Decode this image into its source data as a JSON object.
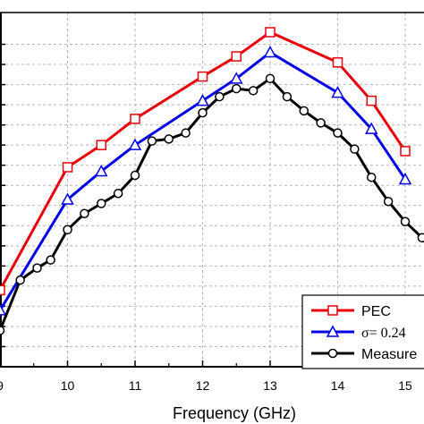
{
  "chart_data": {
    "type": "line",
    "xlabel": "Frequency (GHz)",
    "ylabel": "",
    "xlim": [
      9,
      15.4
    ],
    "ylim": [
      0,
      16
    ],
    "x_ticks": [
      "9",
      "10",
      "11",
      "12",
      "13",
      "14",
      "15"
    ],
    "grid": true,
    "legend_position": "bottom-right",
    "series": [
      {
        "name": "PEC",
        "color": "#e8000b",
        "marker": "square",
        "x": [
          9,
          10,
          10.5,
          11,
          12,
          12.5,
          13,
          14,
          14.5,
          15
        ],
        "y": [
          3.8,
          9.9,
          11.0,
          12.3,
          14.4,
          15.4,
          16.6,
          15.1,
          13.2,
          10.7
        ]
      },
      {
        "name": "σ= 0.24 ",
        "color": "#0000e6",
        "marker": "triangle",
        "x": [
          9,
          10,
          10.5,
          11,
          12,
          12.5,
          13,
          14,
          14.5,
          15
        ],
        "y": [
          2.8,
          8.3,
          9.7,
          11.0,
          13.2,
          14.3,
          15.6,
          13.6,
          11.8,
          9.3
        ]
      },
      {
        "name": "Measure",
        "color": "#000000",
        "marker": "circle",
        "x": [
          9,
          9.3,
          9.55,
          9.75,
          10,
          10.25,
          10.5,
          10.75,
          11,
          11.25,
          11.5,
          11.75,
          12,
          12.25,
          12.5,
          12.75,
          13,
          13.25,
          13.5,
          13.75,
          14,
          14.25,
          14.5,
          14.75,
          15,
          15.25
        ],
        "y": [
          1.8,
          4.3,
          4.9,
          5.3,
          6.8,
          7.6,
          8.1,
          8.6,
          9.5,
          11.2,
          11.3,
          11.6,
          12.6,
          13.4,
          13.8,
          13.7,
          14.3,
          13.4,
          12.7,
          12.1,
          11.6,
          10.8,
          9.4,
          8.2,
          7.2,
          6.4
        ]
      }
    ]
  },
  "legend": {
    "items": [
      {
        "label": "PEC",
        "style": "sans"
      },
      {
        "label": "σ= 0.24 ",
        "style": "serif"
      },
      {
        "label": "Measure",
        "style": "sans"
      }
    ]
  }
}
